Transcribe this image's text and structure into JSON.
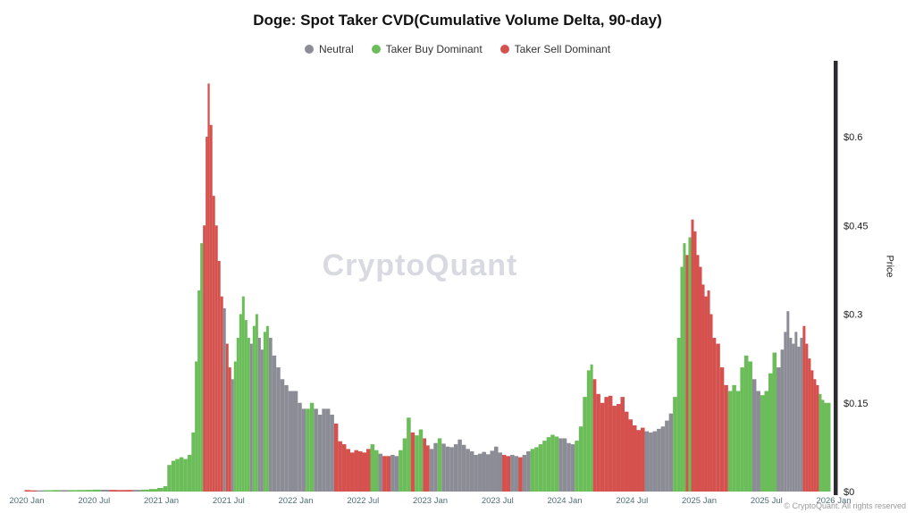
{
  "watermark": "CryptoQuant",
  "footer": "© CryptoQuant. All rights reserved",
  "chart_data": {
    "type": "bar",
    "title": "Doge: Spot Taker CVD(Cumulative Volume Delta, 90-day)",
    "xlabel": "",
    "ylabel": "Price",
    "x_range": [
      2020.0,
      2026.0
    ],
    "ylim": [
      0,
      0.6
    ],
    "grid": false,
    "legend_position": "top-center",
    "legend": [
      {
        "label": "Neutral",
        "color": "#8c8c96"
      },
      {
        "label": "Taker Buy Dominant",
        "color": "#6abd58"
      },
      {
        "label": "Taker Sell Dominant",
        "color": "#d5514d"
      }
    ],
    "series_colors": {
      "N": "#8c8c96",
      "B": "#6abd58",
      "S": "#d5514d"
    },
    "colors": {
      "tick": "#4f6f74",
      "ytick": "#1c1c1c",
      "axis": "#2b2b30"
    },
    "y_ticks": [
      {
        "v": 0,
        "label": "$0"
      },
      {
        "v": 0.15,
        "label": "$0.15"
      },
      {
        "v": 0.3,
        "label": "$0.3"
      },
      {
        "v": 0.45,
        "label": "$0.45"
      },
      {
        "v": 0.6,
        "label": "$0.6"
      }
    ],
    "x_ticks": [
      {
        "v": 2020.0,
        "label": "2020 Jan"
      },
      {
        "v": 2020.5,
        "label": "2020 Jul"
      },
      {
        "v": 2021.0,
        "label": "2021 Jan"
      },
      {
        "v": 2021.5,
        "label": "2021 Jul"
      },
      {
        "v": 2022.0,
        "label": "2022 Jan"
      },
      {
        "v": 2022.5,
        "label": "2022 Jul"
      },
      {
        "v": 2023.0,
        "label": "2023 Jan"
      },
      {
        "v": 2023.5,
        "label": "2023 Jul"
      },
      {
        "v": 2024.0,
        "label": "2024 Jan"
      },
      {
        "v": 2024.5,
        "label": "2024 Jul"
      },
      {
        "v": 2025.0,
        "label": "2025 Jan"
      },
      {
        "v": 2025.5,
        "label": "2025 Jul"
      },
      {
        "v": 2026.0,
        "label": "2026 Jan"
      }
    ],
    "points": [
      [
        2020.0,
        0.0025,
        "S"
      ],
      [
        2020.05,
        0.002,
        "S"
      ],
      [
        2020.1,
        0.002,
        "N"
      ],
      [
        2020.16,
        0.0022,
        "B"
      ],
      [
        2020.22,
        0.0025,
        "B"
      ],
      [
        2020.28,
        0.0024,
        "N"
      ],
      [
        2020.34,
        0.0024,
        "B"
      ],
      [
        2020.4,
        0.0026,
        "B"
      ],
      [
        2020.46,
        0.0028,
        "B"
      ],
      [
        2020.52,
        0.0032,
        "B"
      ],
      [
        2020.58,
        0.003,
        "N"
      ],
      [
        2020.64,
        0.0028,
        "S"
      ],
      [
        2020.7,
        0.0026,
        "S"
      ],
      [
        2020.76,
        0.0027,
        "S"
      ],
      [
        2020.82,
        0.0028,
        "N"
      ],
      [
        2020.88,
        0.0032,
        "B"
      ],
      [
        2020.94,
        0.0042,
        "B"
      ],
      [
        2021.0,
        0.006,
        "B"
      ],
      [
        2021.03,
        0.009,
        "B"
      ],
      [
        2021.06,
        0.045,
        "B"
      ],
      [
        2021.09,
        0.052,
        "B"
      ],
      [
        2021.12,
        0.055,
        "B"
      ],
      [
        2021.15,
        0.058,
        "B"
      ],
      [
        2021.18,
        0.055,
        "B"
      ],
      [
        2021.21,
        0.062,
        "B"
      ],
      [
        2021.24,
        0.1,
        "B"
      ],
      [
        2021.26,
        0.22,
        "B"
      ],
      [
        2021.28,
        0.34,
        "B"
      ],
      [
        2021.3,
        0.42,
        "B"
      ],
      [
        2021.32,
        0.45,
        "S"
      ],
      [
        2021.34,
        0.6,
        "S"
      ],
      [
        2021.35,
        0.69,
        "S"
      ],
      [
        2021.37,
        0.62,
        "S"
      ],
      [
        2021.39,
        0.5,
        "S"
      ],
      [
        2021.41,
        0.45,
        "S"
      ],
      [
        2021.43,
        0.39,
        "S"
      ],
      [
        2021.45,
        0.33,
        "S"
      ],
      [
        2021.47,
        0.31,
        "N"
      ],
      [
        2021.49,
        0.25,
        "S"
      ],
      [
        2021.51,
        0.21,
        "S"
      ],
      [
        2021.53,
        0.19,
        "N"
      ],
      [
        2021.55,
        0.22,
        "B"
      ],
      [
        2021.57,
        0.26,
        "B"
      ],
      [
        2021.59,
        0.3,
        "B"
      ],
      [
        2021.61,
        0.33,
        "B"
      ],
      [
        2021.63,
        0.29,
        "B"
      ],
      [
        2021.65,
        0.26,
        "B"
      ],
      [
        2021.67,
        0.25,
        "N"
      ],
      [
        2021.69,
        0.28,
        "B"
      ],
      [
        2021.71,
        0.3,
        "B"
      ],
      [
        2021.73,
        0.26,
        "N"
      ],
      [
        2021.75,
        0.24,
        "N"
      ],
      [
        2021.77,
        0.27,
        "B"
      ],
      [
        2021.79,
        0.28,
        "B"
      ],
      [
        2021.81,
        0.26,
        "N"
      ],
      [
        2021.84,
        0.23,
        "N"
      ],
      [
        2021.87,
        0.21,
        "N"
      ],
      [
        2021.9,
        0.19,
        "N"
      ],
      [
        2021.93,
        0.18,
        "N"
      ],
      [
        2021.96,
        0.17,
        "N"
      ],
      [
        2022.0,
        0.17,
        "N"
      ],
      [
        2022.03,
        0.15,
        "N"
      ],
      [
        2022.06,
        0.14,
        "N"
      ],
      [
        2022.09,
        0.14,
        "B"
      ],
      [
        2022.12,
        0.15,
        "B"
      ],
      [
        2022.15,
        0.14,
        "N"
      ],
      [
        2022.18,
        0.13,
        "N"
      ],
      [
        2022.21,
        0.14,
        "N"
      ],
      [
        2022.24,
        0.14,
        "N"
      ],
      [
        2022.27,
        0.13,
        "N"
      ],
      [
        2022.3,
        0.115,
        "S"
      ],
      [
        2022.33,
        0.085,
        "S"
      ],
      [
        2022.36,
        0.08,
        "S"
      ],
      [
        2022.39,
        0.072,
        "S"
      ],
      [
        2022.42,
        0.066,
        "S"
      ],
      [
        2022.45,
        0.07,
        "S"
      ],
      [
        2022.48,
        0.068,
        "S"
      ],
      [
        2022.51,
        0.066,
        "S"
      ],
      [
        2022.54,
        0.072,
        "S"
      ],
      [
        2022.57,
        0.08,
        "B"
      ],
      [
        2022.6,
        0.07,
        "B"
      ],
      [
        2022.63,
        0.064,
        "N"
      ],
      [
        2022.66,
        0.06,
        "S"
      ],
      [
        2022.69,
        0.06,
        "S"
      ],
      [
        2022.72,
        0.062,
        "N"
      ],
      [
        2022.75,
        0.06,
        "N"
      ],
      [
        2022.78,
        0.07,
        "B"
      ],
      [
        2022.81,
        0.09,
        "B"
      ],
      [
        2022.84,
        0.125,
        "B"
      ],
      [
        2022.87,
        0.1,
        "S"
      ],
      [
        2022.9,
        0.095,
        "B"
      ],
      [
        2022.93,
        0.105,
        "B"
      ],
      [
        2022.96,
        0.09,
        "S"
      ],
      [
        2022.98,
        0.078,
        "S"
      ],
      [
        2023.01,
        0.072,
        "N"
      ],
      [
        2023.04,
        0.082,
        "N"
      ],
      [
        2023.07,
        0.09,
        "B"
      ],
      [
        2023.1,
        0.081,
        "N"
      ],
      [
        2023.13,
        0.076,
        "N"
      ],
      [
        2023.16,
        0.075,
        "N"
      ],
      [
        2023.19,
        0.08,
        "N"
      ],
      [
        2023.22,
        0.088,
        "N"
      ],
      [
        2023.25,
        0.079,
        "N"
      ],
      [
        2023.28,
        0.072,
        "N"
      ],
      [
        2023.31,
        0.068,
        "N"
      ],
      [
        2023.34,
        0.062,
        "N"
      ],
      [
        2023.37,
        0.064,
        "N"
      ],
      [
        2023.4,
        0.067,
        "N"
      ],
      [
        2023.43,
        0.063,
        "N"
      ],
      [
        2023.46,
        0.069,
        "N"
      ],
      [
        2023.49,
        0.076,
        "N"
      ],
      [
        2023.52,
        0.066,
        "N"
      ],
      [
        2023.55,
        0.062,
        "S"
      ],
      [
        2023.58,
        0.06,
        "S"
      ],
      [
        2023.61,
        0.062,
        "N"
      ],
      [
        2023.64,
        0.06,
        "N"
      ],
      [
        2023.67,
        0.058,
        "S"
      ],
      [
        2023.7,
        0.062,
        "N"
      ],
      [
        2023.73,
        0.068,
        "N"
      ],
      [
        2023.76,
        0.072,
        "B"
      ],
      [
        2023.79,
        0.075,
        "B"
      ],
      [
        2023.82,
        0.08,
        "B"
      ],
      [
        2023.85,
        0.086,
        "B"
      ],
      [
        2023.88,
        0.092,
        "B"
      ],
      [
        2023.91,
        0.096,
        "B"
      ],
      [
        2023.94,
        0.093,
        "B"
      ],
      [
        2023.97,
        0.09,
        "N"
      ],
      [
        2024.0,
        0.09,
        "N"
      ],
      [
        2024.03,
        0.082,
        "N"
      ],
      [
        2024.06,
        0.08,
        "N"
      ],
      [
        2024.09,
        0.086,
        "B"
      ],
      [
        2024.12,
        0.11,
        "B"
      ],
      [
        2024.15,
        0.16,
        "B"
      ],
      [
        2024.18,
        0.205,
        "B"
      ],
      [
        2024.2,
        0.215,
        "B"
      ],
      [
        2024.22,
        0.19,
        "S"
      ],
      [
        2024.25,
        0.165,
        "S"
      ],
      [
        2024.28,
        0.15,
        "S"
      ],
      [
        2024.31,
        0.16,
        "S"
      ],
      [
        2024.34,
        0.162,
        "S"
      ],
      [
        2024.37,
        0.145,
        "S"
      ],
      [
        2024.4,
        0.148,
        "S"
      ],
      [
        2024.43,
        0.16,
        "S"
      ],
      [
        2024.46,
        0.135,
        "S"
      ],
      [
        2024.49,
        0.122,
        "S"
      ],
      [
        2024.52,
        0.112,
        "S"
      ],
      [
        2024.55,
        0.104,
        "S"
      ],
      [
        2024.58,
        0.108,
        "S"
      ],
      [
        2024.61,
        0.102,
        "N"
      ],
      [
        2024.64,
        0.1,
        "N"
      ],
      [
        2024.67,
        0.102,
        "N"
      ],
      [
        2024.7,
        0.106,
        "N"
      ],
      [
        2024.73,
        0.11,
        "N"
      ],
      [
        2024.76,
        0.12,
        "N"
      ],
      [
        2024.79,
        0.132,
        "N"
      ],
      [
        2024.82,
        0.16,
        "B"
      ],
      [
        2024.85,
        0.26,
        "B"
      ],
      [
        2024.87,
        0.38,
        "B"
      ],
      [
        2024.89,
        0.42,
        "B"
      ],
      [
        2024.91,
        0.4,
        "S"
      ],
      [
        2024.93,
        0.43,
        "B"
      ],
      [
        2024.95,
        0.46,
        "S"
      ],
      [
        2024.97,
        0.44,
        "S"
      ],
      [
        2024.99,
        0.4,
        "S"
      ],
      [
        2025.01,
        0.38,
        "S"
      ],
      [
        2025.03,
        0.35,
        "S"
      ],
      [
        2025.05,
        0.33,
        "S"
      ],
      [
        2025.07,
        0.34,
        "S"
      ],
      [
        2025.09,
        0.3,
        "S"
      ],
      [
        2025.11,
        0.26,
        "S"
      ],
      [
        2025.14,
        0.25,
        "S"
      ],
      [
        2025.17,
        0.21,
        "S"
      ],
      [
        2025.2,
        0.18,
        "S"
      ],
      [
        2025.23,
        0.17,
        "B"
      ],
      [
        2025.26,
        0.18,
        "B"
      ],
      [
        2025.29,
        0.17,
        "B"
      ],
      [
        2025.32,
        0.21,
        "B"
      ],
      [
        2025.35,
        0.23,
        "B"
      ],
      [
        2025.38,
        0.22,
        "B"
      ],
      [
        2025.41,
        0.19,
        "N"
      ],
      [
        2025.44,
        0.17,
        "N"
      ],
      [
        2025.47,
        0.163,
        "B"
      ],
      [
        2025.5,
        0.17,
        "B"
      ],
      [
        2025.53,
        0.2,
        "B"
      ],
      [
        2025.56,
        0.235,
        "B"
      ],
      [
        2025.59,
        0.21,
        "N"
      ],
      [
        2025.62,
        0.24,
        "N"
      ],
      [
        2025.64,
        0.27,
        "N"
      ],
      [
        2025.66,
        0.305,
        "N"
      ],
      [
        2025.68,
        0.26,
        "N"
      ],
      [
        2025.7,
        0.25,
        "N"
      ],
      [
        2025.72,
        0.27,
        "N"
      ],
      [
        2025.74,
        0.245,
        "N"
      ],
      [
        2025.76,
        0.26,
        "N"
      ],
      [
        2025.78,
        0.28,
        "S"
      ],
      [
        2025.8,
        0.25,
        "S"
      ],
      [
        2025.82,
        0.225,
        "S"
      ],
      [
        2025.84,
        0.205,
        "S"
      ],
      [
        2025.86,
        0.19,
        "S"
      ],
      [
        2025.88,
        0.18,
        "S"
      ],
      [
        2025.9,
        0.165,
        "B"
      ],
      [
        2025.92,
        0.155,
        "B"
      ],
      [
        2025.94,
        0.15,
        "B"
      ],
      [
        2025.96,
        0.15,
        "B"
      ]
    ]
  }
}
